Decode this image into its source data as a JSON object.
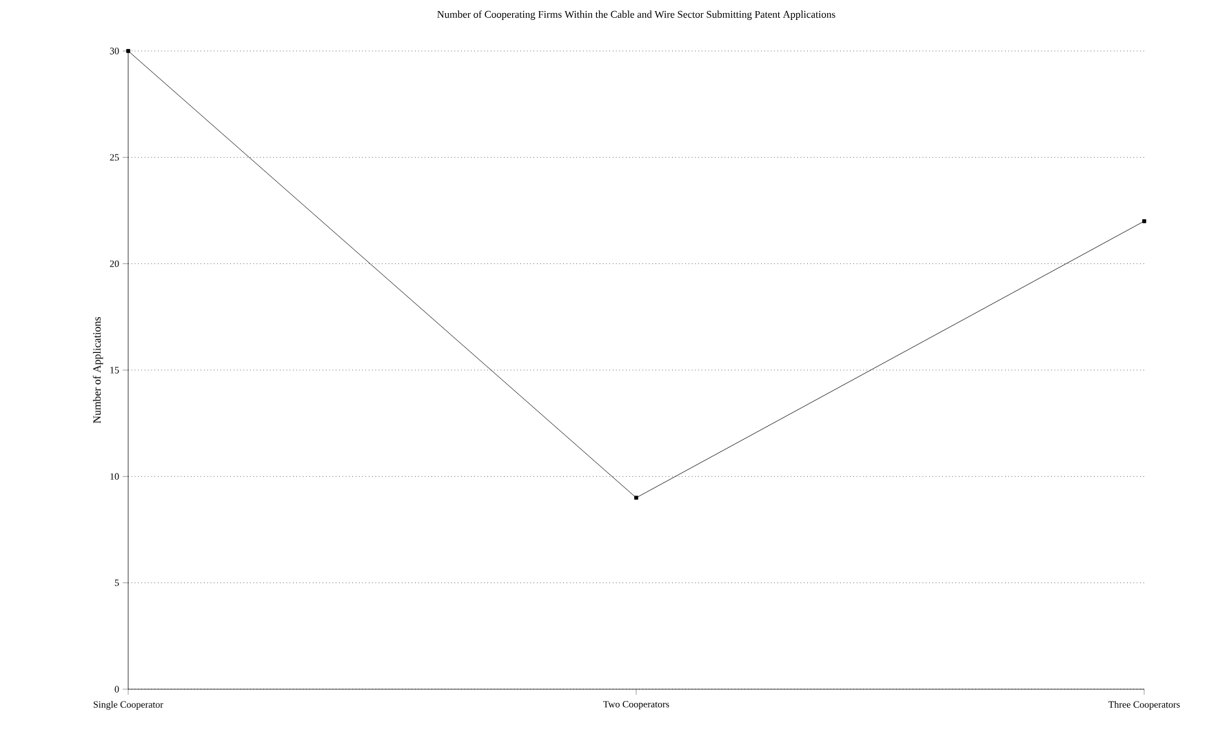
{
  "chart_data": {
    "type": "line",
    "title": "Number of Cooperating Firms Within the Cable and Wire Sector Submitting Patent Applications",
    "ylabel": "Number of Applications",
    "categories": [
      "Single Cooperator",
      "Two Cooperators",
      "Three Cooperators"
    ],
    "values": [
      30,
      9,
      22
    ],
    "color": "#000000",
    "ylim": [
      0,
      30
    ],
    "yticks": [
      0,
      5,
      10,
      15,
      20,
      25,
      30
    ],
    "grid": "y",
    "marker": "square",
    "line_style": "solid"
  }
}
